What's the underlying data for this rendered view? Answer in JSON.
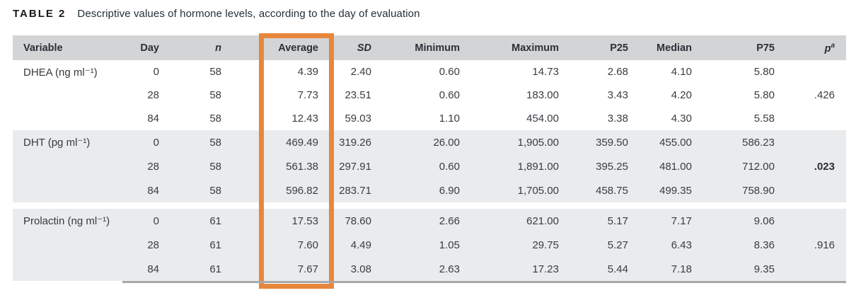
{
  "title": {
    "label": "TABLE 2",
    "caption": "Descriptive values of hormone levels, according to the day of evaluation"
  },
  "colors": {
    "highlight_orange": "#E8873C",
    "header_row_bg": "#D2D4D6",
    "shaded_block_bg": "#E9EBED",
    "bottom_rule_gray": "#A7A9AC"
  },
  "highlight": {
    "highlighted_column": "Average"
  },
  "table": {
    "headers": [
      {
        "label": "Variable"
      },
      {
        "label": "Day"
      },
      {
        "label": "n"
      },
      {
        "label": "Average"
      },
      {
        "label": "SD"
      },
      {
        "label": "Minimum"
      },
      {
        "label": "Maximum"
      },
      {
        "label": "P25"
      },
      {
        "label": "Median"
      },
      {
        "label": "P75"
      },
      {
        "label": "p",
        "sup": "a"
      }
    ],
    "groups": [
      {
        "variable": "DHEA (ng ml⁻¹)",
        "shaded": false,
        "gap_before": false,
        "rows": [
          {
            "day": "0",
            "n": "58",
            "average": "4.39",
            "sd": "2.40",
            "min": "0.60",
            "max": "14.73",
            "p25": "2.68",
            "median": "4.10",
            "p75": "5.80",
            "p": "",
            "p_bold": false
          },
          {
            "day": "28",
            "n": "58",
            "average": "7.73",
            "sd": "23.51",
            "min": "0.60",
            "max": "183.00",
            "p25": "3.43",
            "median": "4.20",
            "p75": "5.80",
            "p": ".426",
            "p_bold": false
          },
          {
            "day": "84",
            "n": "58",
            "average": "12.43",
            "sd": "59.03",
            "min": "1.10",
            "max": "454.00",
            "p25": "3.38",
            "median": "4.30",
            "p75": "5.58",
            "p": "",
            "p_bold": false
          }
        ]
      },
      {
        "variable": "DHT (pg ml⁻¹)",
        "shaded": true,
        "gap_before": false,
        "rows": [
          {
            "day": "0",
            "n": "58",
            "average": "469.49",
            "sd": "319.26",
            "min": "26.00",
            "max": "1,905.00",
            "p25": "359.50",
            "median": "455.00",
            "p75": "586.23",
            "p": "",
            "p_bold": false
          },
          {
            "day": "28",
            "n": "58",
            "average": "561.38",
            "sd": "297.91",
            "min": "0.60",
            "max": "1,891.00",
            "p25": "395.25",
            "median": "481.00",
            "p75": "712.00",
            "p": ".023",
            "p_bold": true
          },
          {
            "day": "84",
            "n": "58",
            "average": "596.82",
            "sd": "283.71",
            "min": "6.90",
            "max": "1,705.00",
            "p25": "458.75",
            "median": "499.35",
            "p75": "758.90",
            "p": "",
            "p_bold": false
          }
        ]
      },
      {
        "variable": "Prolactin (ng ml⁻¹)",
        "shaded": true,
        "gap_before": true,
        "rows": [
          {
            "day": "0",
            "n": "61",
            "average": "17.53",
            "sd": "78.60",
            "min": "2.66",
            "max": "621.00",
            "p25": "5.17",
            "median": "7.17",
            "p75": "9.06",
            "p": "",
            "p_bold": false
          },
          {
            "day": "28",
            "n": "61",
            "average": "7.60",
            "sd": "4.49",
            "min": "1.05",
            "max": "29.75",
            "p25": "5.27",
            "median": "6.43",
            "p75": "8.36",
            "p": ".916",
            "p_bold": false
          },
          {
            "day": "84",
            "n": "61",
            "average": "7.67",
            "sd": "3.08",
            "min": "2.63",
            "max": "17.23",
            "p25": "5.44",
            "median": "7.18",
            "p75": "9.35",
            "p": "",
            "p_bold": false
          }
        ]
      }
    ]
  }
}
